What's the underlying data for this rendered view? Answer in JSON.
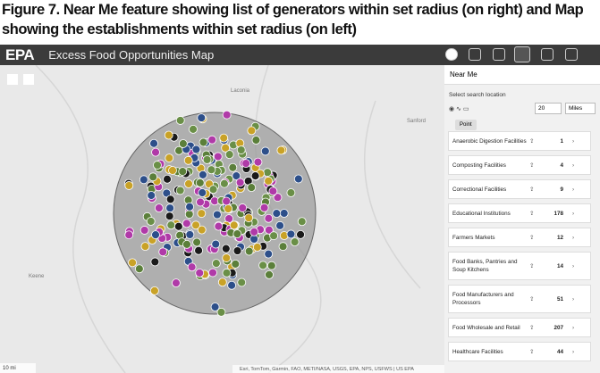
{
  "caption": "Figure 7. Near Me feature showing list of generators within set radius (on right) and Map showing the establishments within set radius (on left)",
  "header": {
    "logo": "EPA",
    "title": "Excess Food Opportunities Map"
  },
  "map": {
    "places": [
      "Laconia",
      "Sanford",
      "Keene"
    ],
    "scale": "10 mi",
    "attribution": "Esri, TomTom, Garmin, FAO, METI/NASA, USGS, EPA, NPS, USFWS | US EPA"
  },
  "panel": {
    "title": "Near Me",
    "search_label": "Select search location",
    "radius": "20",
    "unit": "Miles",
    "point_button": "Point",
    "items": [
      {
        "label": "Anaerobic Digestion Facilities",
        "count": 1
      },
      {
        "label": "Composting Facilities",
        "count": 4
      },
      {
        "label": "Correctional Facilities",
        "count": 9
      },
      {
        "label": "Educational Institutions",
        "count": 178
      },
      {
        "label": "Farmers Markets",
        "count": 12
      },
      {
        "label": "Food Banks, Pantries and Soup Kitchens",
        "count": 14
      },
      {
        "label": "Food Manufacturers and Processors",
        "count": 51
      },
      {
        "label": "Food Wholesale and Retail",
        "count": 207
      },
      {
        "label": "Healthcare Facilities",
        "count": 44
      }
    ]
  }
}
